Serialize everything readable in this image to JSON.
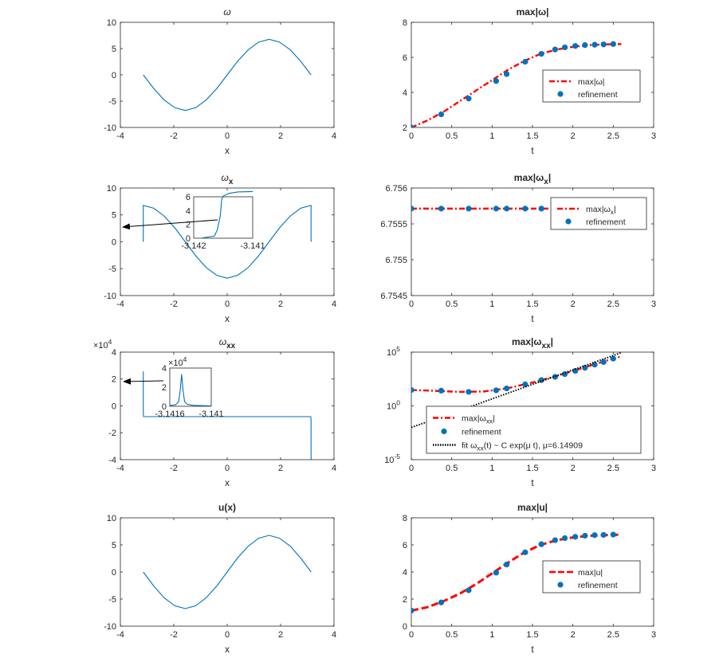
{
  "chart_data": [
    {
      "type": "line",
      "title": "ω",
      "xlabel": "x",
      "ylabel": "",
      "xlim": [
        -4,
        4
      ],
      "ylim": [
        -10,
        10
      ],
      "xticks": [
        "-4",
        "-2",
        "0",
        "2",
        "4"
      ],
      "yticks": [
        "10",
        "5",
        "0",
        "-5",
        "-10"
      ],
      "series": [
        {
          "x": [
            -3.1416,
            -2.75,
            -2.36,
            -1.96,
            -1.57,
            -1.18,
            -0.79,
            -0.39,
            0,
            0.39,
            0.79,
            1.18,
            1.57,
            1.96,
            2.36,
            2.75,
            3.1416
          ],
          "y": [
            0,
            -2.59,
            -4.78,
            -6.24,
            -6.76,
            -6.24,
            -4.78,
            -2.59,
            0,
            2.59,
            4.78,
            6.24,
            6.76,
            6.24,
            4.78,
            2.59,
            0
          ]
        }
      ]
    },
    {
      "type": "line",
      "title": "max|ω|",
      "xlabel": "t",
      "ylabel": "",
      "xlim": [
        0,
        3
      ],
      "ylim": [
        2,
        8
      ],
      "xticks": [
        "0",
        "0.5",
        "1",
        "1.5",
        "2",
        "2.5",
        "3"
      ],
      "yticks": [
        "8",
        "6",
        "4",
        "2"
      ],
      "legend_position": "right",
      "series": [
        {
          "name": "max|ω|",
          "style": "dash-dot",
          "x": [
            0,
            0.2,
            0.4,
            0.6,
            0.8,
            1.0,
            1.2,
            1.4,
            1.6,
            1.8,
            2.0,
            2.2,
            2.4,
            2.6
          ],
          "y": [
            2.0,
            2.4,
            2.9,
            3.5,
            4.1,
            4.7,
            5.3,
            5.8,
            6.2,
            6.45,
            6.6,
            6.7,
            6.74,
            6.76
          ]
        },
        {
          "name": "refinement",
          "style": "markers",
          "x": [
            0,
            0.37,
            0.71,
            1.05,
            1.18,
            1.41,
            1.61,
            1.78,
            1.9,
            2.03,
            2.15,
            2.27,
            2.38,
            2.5
          ],
          "y": [
            2.0,
            2.75,
            3.65,
            4.65,
            5.05,
            5.75,
            6.2,
            6.45,
            6.57,
            6.65,
            6.7,
            6.72,
            6.74,
            6.76
          ]
        }
      ]
    },
    {
      "type": "line",
      "title": "ω",
      "title_sub": "x",
      "xlabel": "x",
      "ylabel": "",
      "xlim": [
        -4,
        4
      ],
      "ylim": [
        -10,
        10
      ],
      "xticks": [
        "-4",
        "-2",
        "0",
        "2",
        "4"
      ],
      "yticks": [
        "10",
        "5",
        "0",
        "-5",
        "-10"
      ],
      "series": [
        {
          "x": [
            -3.1416,
            -3.1416,
            -2.75,
            -2.36,
            -1.96,
            -1.57,
            -1.18,
            -0.79,
            -0.39,
            0,
            0.39,
            0.79,
            1.18,
            1.57,
            1.96,
            2.36,
            2.75,
            3.1416,
            3.1416
          ],
          "y": [
            0,
            6.76,
            6.24,
            4.78,
            2.59,
            0,
            -2.59,
            -4.78,
            -6.24,
            -6.76,
            -6.24,
            -4.78,
            -2.59,
            0,
            2.59,
            4.78,
            6.24,
            6.76,
            0
          ]
        }
      ],
      "inset": {
        "xlim": [
          -3.1425,
          -3.1405
        ],
        "ylim": [
          0,
          6
        ],
        "xticks": [
          "-3.142",
          "-3.141"
        ],
        "yticks": [
          "6",
          "4",
          "2",
          "0"
        ],
        "series": [
          {
            "x": [
              -3.1422,
              -3.1418,
              -3.1417,
              -3.1416,
              -3.14155,
              -3.1415,
              -3.1413,
              -3.141,
              -3.1405
            ],
            "y": [
              0.05,
              0.3,
              1.2,
              3.2,
              5.6,
              6.1,
              6.5,
              6.7,
              6.76
            ]
          }
        ]
      }
    },
    {
      "type": "line",
      "title": "max|ω",
      "title_sub": "x",
      "xlabel": "t",
      "ylabel": "",
      "xlim": [
        0,
        3
      ],
      "ylim": [
        6.75445,
        6.75565
      ],
      "xticks": [
        "0",
        "0.5",
        "1",
        "1.5",
        "2",
        "2.5",
        "3"
      ],
      "yticks": [
        "6.756",
        "6.7555",
        "6.755",
        "6.7545"
      ],
      "legend_position": "top-right",
      "series": [
        {
          "name": "max|ω",
          "name_sub": "x",
          "name_tail": "|",
          "style": "dash-dot",
          "x": [
            0,
            0.5,
            1.0,
            1.5,
            2.0,
            2.33
          ],
          "y": [
            6.75542,
            6.75542,
            6.75542,
            6.75542,
            6.75542,
            6.75542
          ]
        },
        {
          "name": "refinement",
          "style": "markers",
          "x": [
            0,
            0.37,
            0.71,
            1.05,
            1.18,
            1.41,
            1.61,
            1.78,
            1.9,
            2.03,
            2.15,
            2.27,
            2.38
          ],
          "y": [
            6.75542,
            6.75542,
            6.75542,
            6.75542,
            6.75542,
            6.75542,
            6.75542,
            6.75542,
            6.75542,
            6.75542,
            6.75542,
            6.75542,
            6.75546
          ]
        }
      ]
    },
    {
      "type": "line",
      "title": "ω",
      "title_sub": "xx",
      "xlabel": "x",
      "ylabel": "",
      "exponent_label": "×10",
      "exponent": "4",
      "xlim": [
        -4,
        4
      ],
      "ylim": [
        -4,
        6
      ],
      "xticks": [
        "-4",
        "-2",
        "0",
        "2",
        "4"
      ],
      "yticks": [
        "4",
        "2",
        "0",
        "-2",
        "-4"
      ],
      "series": [
        {
          "x": [
            -3.1416,
            -3.1416,
            -3.13,
            3.13,
            3.1416,
            3.1416
          ],
          "y": [
            4.2,
            0.3,
            0,
            0,
            -0.3,
            -4.0
          ]
        }
      ],
      "inset": {
        "xlim": [
          -3.142,
          -3.1406
        ],
        "ylim": [
          0,
          5
        ],
        "exponent_label": "×10",
        "exponent": "4",
        "xticks": [
          "-3.1416",
          "-3.141"
        ],
        "yticks": [
          "4",
          "2",
          "0"
        ],
        "series": [
          {
            "x": [
              -3.142,
              -3.1418,
              -3.1417,
              -3.14165,
              -3.1416,
              -3.14155,
              -3.1415,
              -3.1414,
              -3.1412,
              -3.1406
            ],
            "y": [
              0.1,
              0.2,
              0.6,
              2.0,
              4.2,
              2.0,
              0.6,
              0.25,
              0.12,
              0.05
            ]
          }
        ]
      }
    },
    {
      "type": "line",
      "title": "max|ω",
      "title_sub": "xx",
      "xlabel": "t",
      "ylabel": "",
      "yscale": "log",
      "xlim": [
        0,
        3
      ],
      "ylim": [
        1e-05,
        100000.0
      ],
      "xticks": [
        "0",
        "0.5",
        "1",
        "1.5",
        "2",
        "2.5",
        "3"
      ],
      "yticks_base": [
        "10",
        "10",
        "10"
      ],
      "yticks_exp": [
        "5",
        "0",
        "-5"
      ],
      "legend_position": "bottom",
      "series": [
        {
          "name": "max|ω",
          "name_sub": "xx",
          "name_tail": "|",
          "style": "dash-dot",
          "x": [
            0,
            0.3,
            0.6,
            0.9,
            1.2,
            1.5,
            1.8,
            2.1,
            2.4,
            2.6
          ],
          "y": [
            30,
            25,
            20,
            22,
            45,
            150,
            600,
            3000,
            15000,
            40000
          ]
        },
        {
          "name": "refinement",
          "style": "markers",
          "x": [
            0,
            0.37,
            0.71,
            1.05,
            1.18,
            1.41,
            1.61,
            1.78,
            1.9,
            2.03,
            2.15,
            2.27,
            2.38,
            2.5
          ],
          "y": [
            30,
            26,
            20,
            28,
            42,
            100,
            250,
            500,
            900,
            1800,
            3500,
            6800,
            12000,
            25000
          ]
        },
        {
          "name": "fit ω",
          "name_sub": "xx",
          "name_tail": "(t) ~ C exp(μ t),  μ=6.14909",
          "style": "dotted",
          "x": [
            0,
            0.5,
            1.0,
            1.5,
            2.0,
            2.6
          ],
          "y": [
            0.01,
            0.2,
            4.5,
            100,
            2200,
            90000
          ]
        }
      ]
    },
    {
      "type": "line",
      "title": "u(x)",
      "xlabel": "x",
      "ylabel": "",
      "xlim": [
        -4,
        4
      ],
      "ylim": [
        -10,
        10
      ],
      "xticks": [
        "-4",
        "-2",
        "0",
        "2",
        "4"
      ],
      "yticks": [
        "10",
        "5",
        "0",
        "-5",
        "-10"
      ],
      "series": [
        {
          "x": [
            -3.1416,
            -2.75,
            -2.36,
            -1.96,
            -1.57,
            -1.18,
            -0.79,
            -0.39,
            0,
            0.39,
            0.79,
            1.18,
            1.57,
            1.96,
            2.36,
            2.75,
            3.1416
          ],
          "y": [
            0,
            -2.59,
            -4.78,
            -6.24,
            -6.76,
            -6.24,
            -4.78,
            -2.59,
            0,
            2.59,
            4.78,
            6.24,
            6.76,
            6.24,
            4.78,
            2.59,
            0
          ]
        }
      ]
    },
    {
      "type": "line",
      "title": "max|u|",
      "xlabel": "t",
      "ylabel": "",
      "xlim": [
        0,
        3
      ],
      "ylim": [
        0,
        8
      ],
      "xticks": [
        "0",
        "0.5",
        "1",
        "1.5",
        "2",
        "2.5",
        "3"
      ],
      "yticks": [
        "8",
        "6",
        "4",
        "2",
        "0"
      ],
      "legend_position": "right",
      "series": [
        {
          "name": "max|u|",
          "style": "dashed",
          "x": [
            0,
            0.2,
            0.4,
            0.6,
            0.8,
            1.0,
            1.2,
            1.4,
            1.6,
            1.8,
            2.0,
            2.2,
            2.4,
            2.6
          ],
          "y": [
            1.15,
            1.4,
            1.85,
            2.4,
            3.1,
            3.9,
            4.7,
            5.45,
            6.0,
            6.35,
            6.55,
            6.67,
            6.72,
            6.76
          ]
        },
        {
          "name": "refinement",
          "style": "markers",
          "x": [
            0,
            0.37,
            0.71,
            1.05,
            1.18,
            1.41,
            1.61,
            1.78,
            1.9,
            2.03,
            2.15,
            2.27,
            2.38,
            2.5
          ],
          "y": [
            1.15,
            1.75,
            2.65,
            3.95,
            4.55,
            5.45,
            6.05,
            6.35,
            6.5,
            6.6,
            6.68,
            6.72,
            6.74,
            6.76
          ]
        }
      ]
    }
  ]
}
